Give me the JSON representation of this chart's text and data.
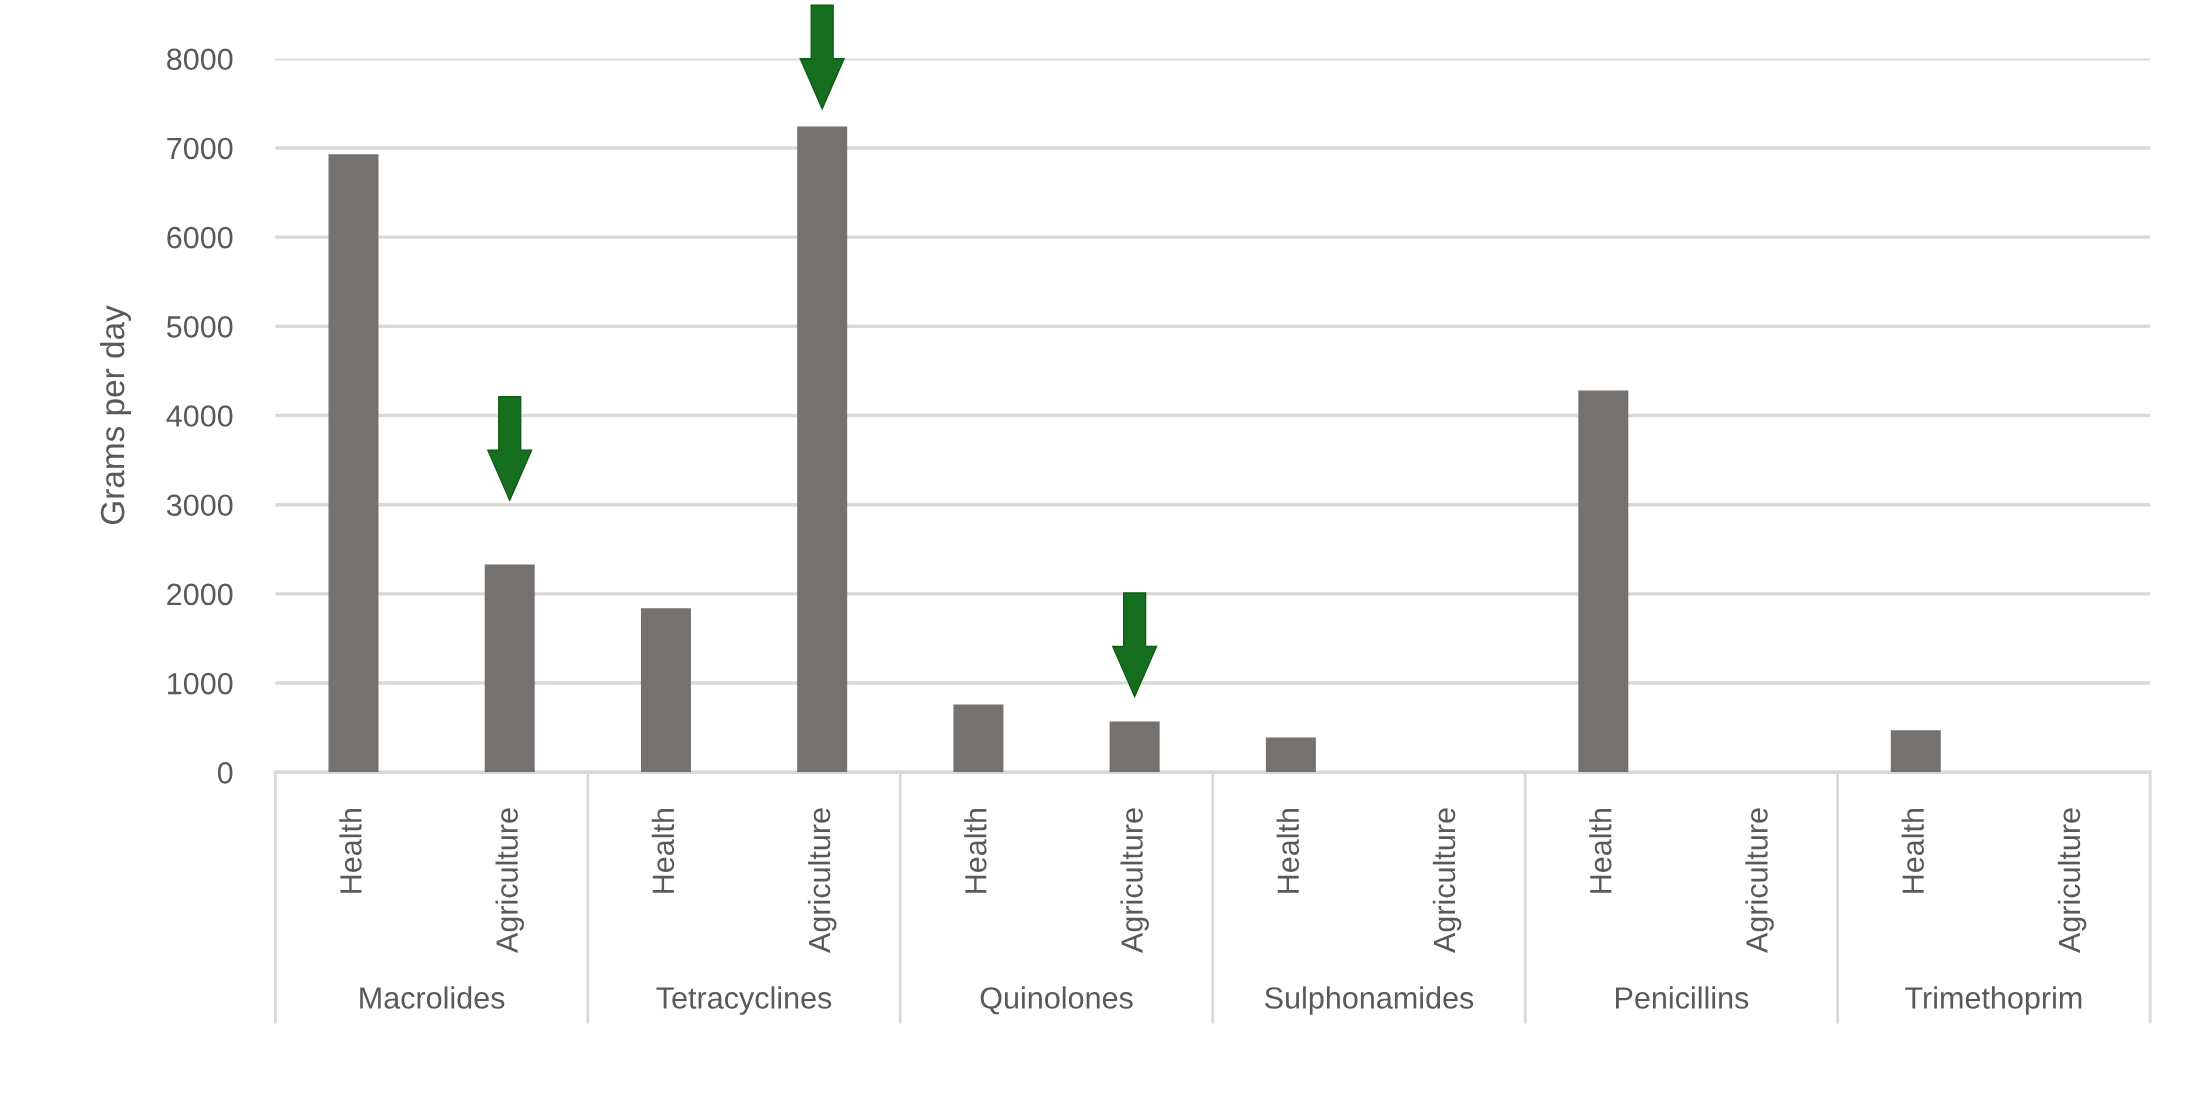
{
  "chart_data": {
    "type": "bar",
    "ylabel": "Grams per day",
    "categories": [
      "Health",
      "Agriculture",
      "Health",
      "Agriculture",
      "Health",
      "Agriculture",
      "Health",
      "Agriculture",
      "Health",
      "Agriculture",
      "Health",
      "Agriculture"
    ],
    "values": [
      6930,
      2330,
      1840,
      7240,
      760,
      570,
      390,
      0,
      4280,
      0,
      470,
      0
    ],
    "color": "#75716f",
    "annotations": [
      "Macrolides",
      "Tetracyclines",
      "Quinolones",
      "Sulphonamides",
      "Penicillins",
      "Trimethoprim"
    ],
    "ylim": [
      0,
      8000
    ],
    "yticks": [
      0,
      1000,
      2000,
      3000,
      4000,
      5000,
      6000,
      7000,
      8000
    ],
    "grid": "y",
    "legend": false
  }
}
